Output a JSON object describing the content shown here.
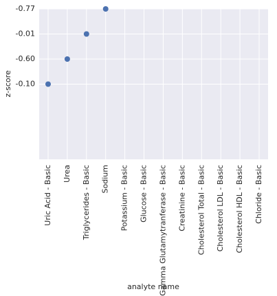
{
  "chart_data": {
    "type": "scatter",
    "xlabel": "analyte name",
    "ylabel": "z-score",
    "categories": [
      "Uric Acid - Basic",
      "Urea",
      "Triglycerides - Basic",
      "Sodium",
      "Potassium - Basic",
      "Glucose - Basic",
      "Gamma Glutamytranferase - Basic",
      "Creatinine - Basic",
      "Cholesterol Total - Basic",
      "Cholesterol LDL - Basic",
      "Cholesterol HDL - Basic",
      "Chloride - Basic"
    ],
    "values": [
      0,
      1,
      2,
      3,
      null,
      null,
      null,
      null,
      null,
      null,
      null,
      null
    ],
    "color": "#4c72b0",
    "ylim": [
      -3,
      3
    ],
    "yticks": [
      {
        "value": 0,
        "label": "-0.10"
      },
      {
        "value": 1,
        "label": "-0.60"
      },
      {
        "value": 2,
        "label": "-0.01"
      },
      {
        "value": 3,
        "label": "-0.77"
      }
    ],
    "grid": true
  }
}
